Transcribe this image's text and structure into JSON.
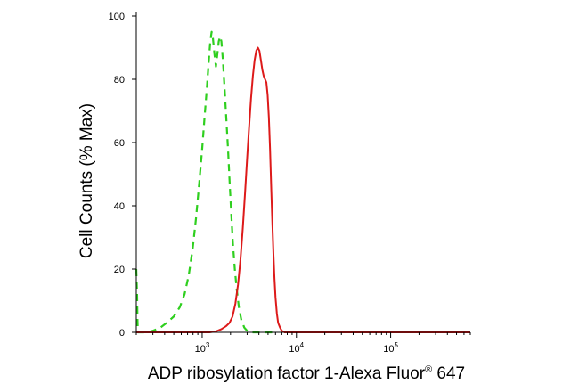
{
  "chart_data": {
    "type": "line",
    "title": "",
    "ylabel": "Cell Counts (% Max)",
    "xlabel": {
      "main": "ADP ribosylation factor 1-Alexa Fluor",
      "superscript": "®",
      "suffix": " 647"
    },
    "x_scale": "log",
    "xlim": [
      200,
      700000
    ],
    "ylim": [
      0,
      100
    ],
    "y_ticks": [
      0,
      20,
      40,
      60,
      80,
      100
    ],
    "y_tick_labels": [
      "0",
      "20",
      "40",
      "60",
      "80",
      "100"
    ],
    "x_major_ticks": [
      1000,
      10000,
      100000
    ],
    "x_tick_labels": [
      {
        "base": "10",
        "exp": "3"
      },
      {
        "base": "10",
        "exp": "4"
      },
      {
        "base": "10",
        "exp": "5"
      }
    ],
    "legend": "none",
    "grid": false,
    "series": [
      {
        "color": "#2fcf1f",
        "dash": "dashed",
        "points": [
          [
            200,
            20
          ],
          [
            204,
            12
          ],
          [
            206,
            4
          ],
          [
            208,
            0
          ],
          [
            212,
            0
          ],
          [
            260,
            0
          ],
          [
            300,
            0.5
          ],
          [
            360,
            1.5
          ],
          [
            420,
            3
          ],
          [
            500,
            5
          ],
          [
            580,
            8
          ],
          [
            650,
            12
          ],
          [
            720,
            18
          ],
          [
            790,
            26
          ],
          [
            860,
            36
          ],
          [
            930,
            47
          ],
          [
            1000,
            58
          ],
          [
            1060,
            68
          ],
          [
            1120,
            77
          ],
          [
            1170,
            85
          ],
          [
            1220,
            92
          ],
          [
            1260,
            95
          ],
          [
            1300,
            93
          ],
          [
            1350,
            88
          ],
          [
            1400,
            84
          ],
          [
            1450,
            88
          ],
          [
            1500,
            92
          ],
          [
            1550,
            93.5
          ],
          [
            1600,
            92
          ],
          [
            1660,
            86
          ],
          [
            1730,
            77
          ],
          [
            1800,
            68
          ],
          [
            1880,
            58
          ],
          [
            1960,
            47
          ],
          [
            2040,
            37
          ],
          [
            2120,
            28
          ],
          [
            2220,
            20
          ],
          [
            2320,
            14
          ],
          [
            2450,
            8
          ],
          [
            2600,
            4
          ],
          [
            2800,
            1.5
          ],
          [
            3000,
            0.5
          ],
          [
            3300,
            0
          ],
          [
            6000,
            0
          ]
        ]
      },
      {
        "color": "#dd1a1a",
        "dash": "solid",
        "points": [
          [
            200,
            0
          ],
          [
            1200,
            0
          ],
          [
            1400,
            0.3
          ],
          [
            1600,
            1
          ],
          [
            1800,
            2
          ],
          [
            1950,
            3
          ],
          [
            2100,
            5
          ],
          [
            2250,
            9
          ],
          [
            2400,
            15
          ],
          [
            2550,
            23
          ],
          [
            2700,
            33
          ],
          [
            2850,
            44
          ],
          [
            3000,
            55
          ],
          [
            3150,
            65
          ],
          [
            3300,
            74
          ],
          [
            3450,
            81
          ],
          [
            3600,
            86
          ],
          [
            3750,
            89
          ],
          [
            3900,
            90
          ],
          [
            4050,
            89
          ],
          [
            4200,
            86
          ],
          [
            4350,
            83
          ],
          [
            4500,
            81
          ],
          [
            4650,
            80
          ],
          [
            4800,
            79
          ],
          [
            4950,
            75
          ],
          [
            5100,
            68
          ],
          [
            5250,
            58
          ],
          [
            5400,
            46
          ],
          [
            5550,
            35
          ],
          [
            5700,
            25
          ],
          [
            5850,
            17
          ],
          [
            6000,
            11
          ],
          [
            6200,
            6
          ],
          [
            6400,
            3
          ],
          [
            6700,
            1.5
          ],
          [
            7000,
            0.5
          ],
          [
            7500,
            0
          ],
          [
            700000,
            0
          ]
        ]
      }
    ]
  }
}
